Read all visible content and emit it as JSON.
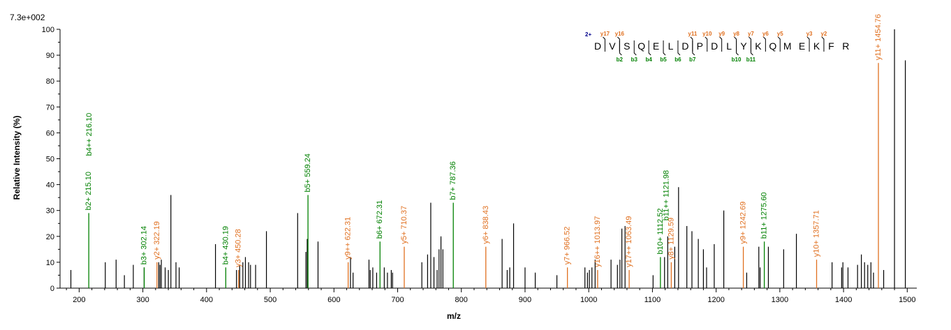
{
  "chart_data": {
    "type": "bar",
    "scale_label": "7.3e+002",
    "xlabel": "m/z",
    "ylabel": "Relative   Intensity (%)",
    "xlim": [
      170,
      1515
    ],
    "ylim": [
      0,
      100
    ],
    "xticks": [
      "200",
      "300",
      "400",
      "500",
      "600",
      "700",
      "800",
      "900",
      "1000",
      "1100",
      "1200",
      "1300",
      "1400",
      "1500"
    ],
    "yticks": [
      "0",
      "10",
      "20",
      "30",
      "40",
      "50",
      "60",
      "70",
      "80",
      "90",
      "100"
    ],
    "colors": {
      "b_ion": "#008000",
      "y_ion": "#e07020",
      "unassigned": "#000000",
      "charge": "#00008b"
    },
    "sequence": {
      "charge": "2+",
      "residues": [
        "D",
        "V",
        "S",
        "Q",
        "E",
        "L",
        "D",
        "P",
        "D",
        "L",
        "Y",
        "K",
        "Q",
        "M",
        "E",
        "K",
        "F",
        "R"
      ],
      "y_labels": [
        {
          "text": "y17",
          "after": 1
        },
        {
          "text": "y16",
          "after": 2
        },
        {
          "text": "y11",
          "after": 7
        },
        {
          "text": "y10",
          "after": 8
        },
        {
          "text": "y9",
          "after": 9
        },
        {
          "text": "y8",
          "after": 10
        },
        {
          "text": "y7",
          "after": 11
        },
        {
          "text": "y6",
          "after": 12
        },
        {
          "text": "y5",
          "after": 13
        },
        {
          "text": "y3",
          "after": 15
        },
        {
          "text": "y2",
          "after": 16
        }
      ],
      "b_labels": [
        {
          "text": "b2",
          "after": 2
        },
        {
          "text": "b3",
          "after": 3
        },
        {
          "text": "b4",
          "after": 4
        },
        {
          "text": "b5",
          "after": 5
        },
        {
          "text": "b6",
          "after": 6
        },
        {
          "text": "b7",
          "after": 7
        },
        {
          "text": "b10",
          "after": 10
        },
        {
          "text": "b11",
          "after": 11
        }
      ]
    },
    "annotated_peaks": [
      {
        "mz": 215.1,
        "intensity": 29,
        "ion": "b",
        "label": "b2+ 215.10"
      },
      {
        "mz": 216.1,
        "intensity": 50,
        "ion": "b",
        "label": "b4++ 216.10",
        "no_stem": true
      },
      {
        "mz": 302.14,
        "intensity": 8,
        "ion": "b",
        "label": "b3+ 302.14"
      },
      {
        "mz": 322.19,
        "intensity": 10,
        "ion": "y",
        "label": "y2+ 322.19"
      },
      {
        "mz": 430.19,
        "intensity": 8,
        "ion": "b",
        "label": "b4+ 430.19"
      },
      {
        "mz": 450.28,
        "intensity": 7,
        "ion": "y",
        "label": "y3+ 450.28"
      },
      {
        "mz": 559.24,
        "intensity": 36,
        "ion": "b",
        "label": "b5+ 559.24"
      },
      {
        "mz": 622.31,
        "intensity": 10,
        "ion": "y",
        "label": "y9++ 622.31"
      },
      {
        "mz": 672.31,
        "intensity": 18,
        "ion": "b",
        "label": "b6+ 672.31"
      },
      {
        "mz": 710.37,
        "intensity": 16,
        "ion": "y",
        "label": "y5+ 710.37"
      },
      {
        "mz": 787.36,
        "intensity": 33,
        "ion": "b",
        "label": "b7+ 787.36"
      },
      {
        "mz": 838.43,
        "intensity": 16,
        "ion": "y",
        "label": "y6+ 838.43"
      },
      {
        "mz": 966.52,
        "intensity": 8,
        "ion": "y",
        "label": "y7+ 966.52"
      },
      {
        "mz": 1013.97,
        "intensity": 7,
        "ion": "y",
        "label": "y16++ 1013.97"
      },
      {
        "mz": 1063.49,
        "intensity": 7,
        "ion": "y",
        "label": "y17++ 1063.49"
      },
      {
        "mz": 1112.52,
        "intensity": 12,
        "ion": "b",
        "label": "b10+ 1112.52"
      },
      {
        "mz": 1121.98,
        "intensity": 25,
        "ion": "b",
        "label": "b11++ 1121.98",
        "no_stem": true
      },
      {
        "mz": 1129.59,
        "intensity": 10,
        "ion": "y",
        "label": "y8+ 1129.59"
      },
      {
        "mz": 1242.69,
        "intensity": 16,
        "ion": "y",
        "label": "y9+ 1242.69"
      },
      {
        "mz": 1275.6,
        "intensity": 18,
        "ion": "b",
        "label": "b11+ 1275.60"
      },
      {
        "mz": 1357.71,
        "intensity": 11,
        "ion": "y",
        "label": "y10+ 1357.71"
      },
      {
        "mz": 1454.76,
        "intensity": 87,
        "ion": "y",
        "label": "y11+ 1454.76"
      }
    ],
    "unassigned_peaks": [
      [
        187,
        7
      ],
      [
        241,
        10
      ],
      [
        258,
        11
      ],
      [
        271,
        5
      ],
      [
        285,
        9
      ],
      [
        302,
        8
      ],
      [
        325,
        10
      ],
      [
        327,
        9
      ],
      [
        329,
        11
      ],
      [
        335,
        8
      ],
      [
        340,
        7
      ],
      [
        344,
        36
      ],
      [
        352,
        10
      ],
      [
        357,
        8
      ],
      [
        414,
        17
      ],
      [
        447,
        7
      ],
      [
        452,
        9
      ],
      [
        457,
        10
      ],
      [
        461,
        12
      ],
      [
        466,
        10
      ],
      [
        469,
        9
      ],
      [
        477,
        9
      ],
      [
        494,
        22
      ],
      [
        543,
        29
      ],
      [
        556,
        14
      ],
      [
        558,
        19
      ],
      [
        575,
        18
      ],
      [
        626,
        12
      ],
      [
        630,
        6
      ],
      [
        655,
        11
      ],
      [
        657,
        7
      ],
      [
        661,
        8
      ],
      [
        667,
        6
      ],
      [
        679,
        8
      ],
      [
        684,
        6
      ],
      [
        690,
        7
      ],
      [
        692,
        6
      ],
      [
        738,
        10
      ],
      [
        747,
        13
      ],
      [
        752,
        33
      ],
      [
        757,
        12
      ],
      [
        762,
        7
      ],
      [
        765,
        15
      ],
      [
        768,
        20
      ],
      [
        771,
        15
      ],
      [
        864,
        19
      ],
      [
        872,
        7
      ],
      [
        876,
        8
      ],
      [
        882,
        25
      ],
      [
        900,
        8
      ],
      [
        916,
        6
      ],
      [
        950,
        5
      ],
      [
        994,
        8
      ],
      [
        998,
        6
      ],
      [
        1001,
        7
      ],
      [
        1005,
        8
      ],
      [
        1010,
        11
      ],
      [
        1035,
        11
      ],
      [
        1045,
        9
      ],
      [
        1049,
        11
      ],
      [
        1052,
        23
      ],
      [
        1057,
        24
      ],
      [
        1101,
        5
      ],
      [
        1119,
        12
      ],
      [
        1124,
        20
      ],
      [
        1135,
        16
      ],
      [
        1141,
        39
      ],
      [
        1154,
        24
      ],
      [
        1162,
        22
      ],
      [
        1172,
        19
      ],
      [
        1180,
        15
      ],
      [
        1185,
        8
      ],
      [
        1197,
        17
      ],
      [
        1212,
        30
      ],
      [
        1248,
        6
      ],
      [
        1267,
        16
      ],
      [
        1269,
        8
      ],
      [
        1282,
        16
      ],
      [
        1306,
        15
      ],
      [
        1326,
        21
      ],
      [
        1382,
        10
      ],
      [
        1397,
        8
      ],
      [
        1399,
        10
      ],
      [
        1407,
        8
      ],
      [
        1422,
        9
      ],
      [
        1428,
        13
      ],
      [
        1433,
        10
      ],
      [
        1438,
        9
      ],
      [
        1443,
        10
      ],
      [
        1447,
        6
      ],
      [
        1463,
        7
      ],
      [
        1480,
        100
      ],
      [
        1497,
        88
      ]
    ]
  }
}
